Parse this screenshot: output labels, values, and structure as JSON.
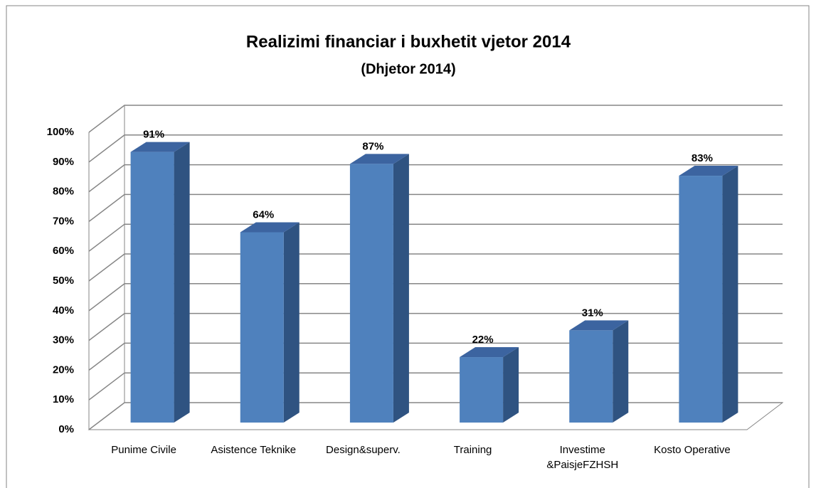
{
  "chart_data": {
    "type": "bar3d",
    "title": "Realizimi financiar i buxhetit vjetor 2014",
    "subtitle": "(Dhjetor 2014)",
    "categories": [
      "Punime Civile",
      "Asistence Teknike",
      "Design&superv.",
      "Training",
      "Investime &PaisjeFZHSH",
      "Kosto Operative"
    ],
    "values": [
      91,
      64,
      87,
      22,
      31,
      83
    ],
    "value_labels": [
      "91%",
      "64%",
      "87%",
      "22%",
      "31%",
      "83%"
    ],
    "color": "#4f81bd",
    "ylim": [
      0,
      100
    ],
    "yticks": [
      {
        "value": 0,
        "label": "0%"
      },
      {
        "value": 10,
        "label": "10%"
      },
      {
        "value": 20,
        "label": "20%"
      },
      {
        "value": 30,
        "label": "30%"
      },
      {
        "value": 40,
        "label": "40%"
      },
      {
        "value": 50,
        "label": "50%"
      },
      {
        "value": 60,
        "label": "60%"
      },
      {
        "value": 70,
        "label": "70%"
      },
      {
        "value": 80,
        "label": "80%"
      },
      {
        "value": 90,
        "label": "90%"
      },
      {
        "value": 100,
        "label": "100%"
      }
    ],
    "grid": true
  }
}
